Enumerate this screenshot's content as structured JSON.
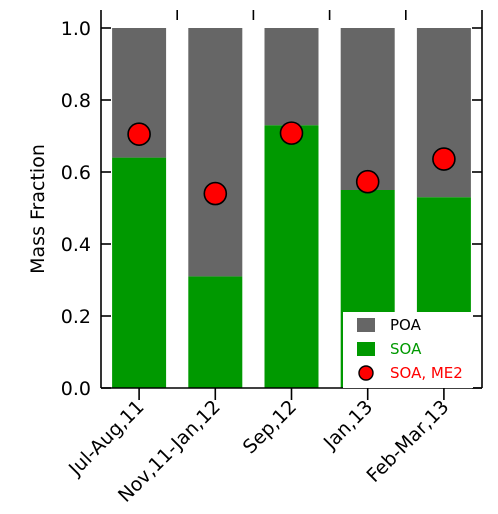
{
  "chart_data": {
    "type": "bar",
    "stacked": true,
    "categories": [
      "Jul-Aug,11",
      "Nov,11-Jan,12",
      "Sep,12",
      "Jan,13",
      "Feb-Mar,13"
    ],
    "series": [
      {
        "name": "SOA",
        "kind": "bar",
        "color": "#009900",
        "values": [
          0.64,
          0.31,
          0.73,
          0.55,
          0.53
        ]
      },
      {
        "name": "POA",
        "kind": "bar",
        "color": "#666666",
        "values": [
          0.36,
          0.69,
          0.27,
          0.45,
          0.47
        ]
      },
      {
        "name": "SOA, ME2",
        "kind": "marker",
        "color": "#ff0000",
        "values": [
          0.705,
          0.54,
          0.708,
          0.573,
          0.636
        ]
      }
    ],
    "ylabel": "Mass Fraction",
    "xlabel": "",
    "ylim": [
      0,
      1.0
    ],
    "yticks": [
      "0.0",
      "0.2",
      "0.4",
      "0.6",
      "0.8",
      "1.0"
    ],
    "legend_position": "bottom-right",
    "legend": [
      {
        "label": "POA",
        "color": "#666666",
        "text_color": "#000000",
        "symbol": "square"
      },
      {
        "label": "SOA",
        "color": "#009900",
        "text_color": "#009900",
        "symbol": "square"
      },
      {
        "label": "SOA, ME2",
        "color": "#ff0000",
        "text_color": "#ff0000",
        "symbol": "circle"
      }
    ],
    "grid": false
  }
}
